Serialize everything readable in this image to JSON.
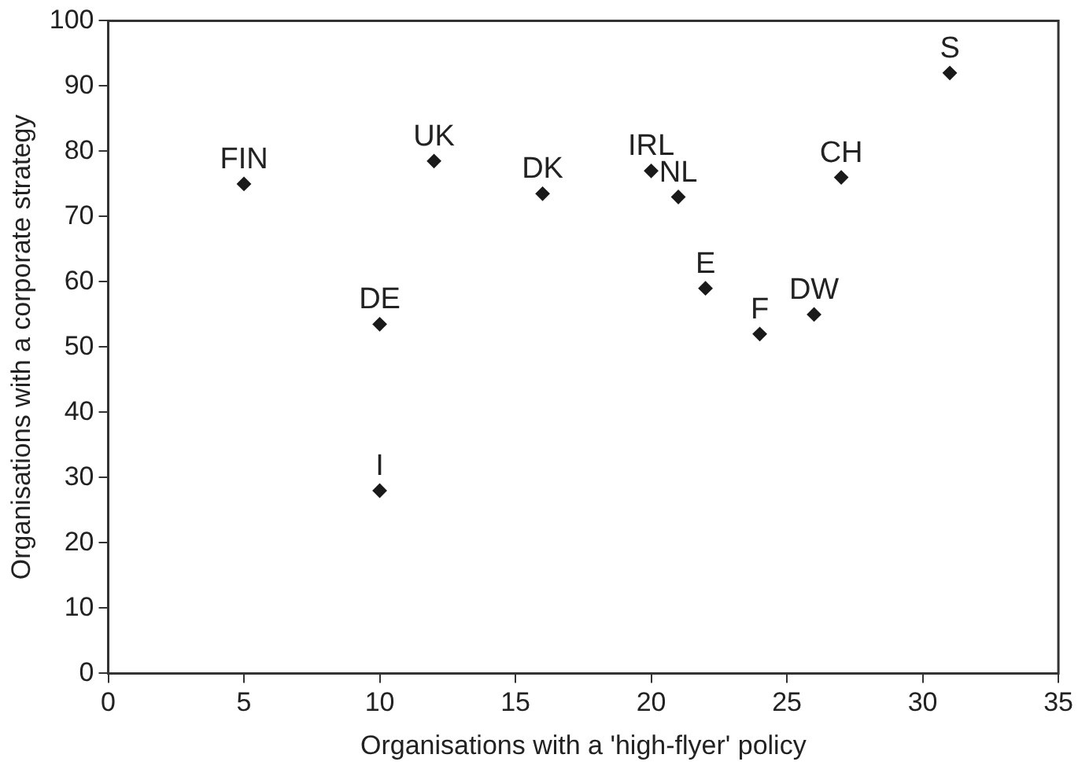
{
  "chart_data": {
    "type": "scatter",
    "xlabel": "Organisations with a 'high-flyer' policy",
    "ylabel": "Organisations with a corporate strategy",
    "x": [
      5,
      12,
      16,
      10,
      10,
      20,
      21,
      22,
      24,
      26,
      27,
      31
    ],
    "values": [
      75,
      78.5,
      73.5,
      53.5,
      28,
      77,
      73,
      59,
      52,
      55,
      76,
      92
    ],
    "color": "#1a1a1a",
    "marker": "diamond",
    "grid": false,
    "legend": false,
    "xlim": [
      0,
      35
    ],
    "xticks": [
      0,
      5,
      10,
      15,
      20,
      25,
      30,
      35
    ],
    "ylim": [
      0,
      100
    ],
    "yticks": [
      0,
      10,
      20,
      30,
      40,
      50,
      60,
      70,
      80,
      90,
      100
    ],
    "annotations": [
      {
        "text": "FIN",
        "x": 5,
        "y": 75
      },
      {
        "text": "UK",
        "x": 12,
        "y": 78.5
      },
      {
        "text": "DK",
        "x": 16,
        "y": 73.5
      },
      {
        "text": "DE",
        "x": 10,
        "y": 53.5
      },
      {
        "text": "I",
        "x": 10,
        "y": 28
      },
      {
        "text": "IRL",
        "x": 20,
        "y": 77
      },
      {
        "text": "NL",
        "x": 21,
        "y": 73
      },
      {
        "text": "E",
        "x": 22,
        "y": 59
      },
      {
        "text": "F",
        "x": 24,
        "y": 52
      },
      {
        "text": "DW",
        "x": 26,
        "y": 55
      },
      {
        "text": "CH",
        "x": 27,
        "y": 76
      },
      {
        "text": "S",
        "x": 31,
        "y": 92
      }
    ]
  }
}
